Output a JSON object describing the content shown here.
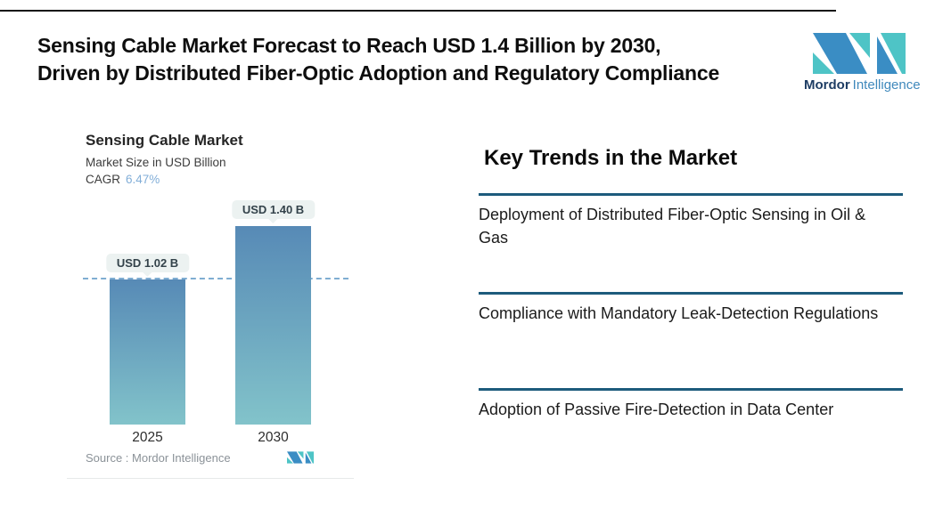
{
  "header": {
    "title_line1": "Sensing Cable Market Forecast to Reach USD 1.4 Billion by 2030,",
    "title_line2": "Driven by Distributed Fiber-Optic Adoption and Regulatory Compliance",
    "brand": {
      "word_primary": "Mordor",
      "word_secondary": "Intelligence"
    }
  },
  "chart_data": {
    "type": "bar",
    "title": "Sensing Cable Market",
    "subtitle": "Market Size in USD Billion",
    "cagr_label": "CAGR",
    "cagr_value": "6.47%",
    "categories": [
      "2025",
      "2030"
    ],
    "values": [
      1.02,
      1.4
    ],
    "value_labels": [
      "USD 1.02 B",
      "USD 1.40 B"
    ],
    "unit": "USD Billion",
    "ylim": [
      0,
      1.55
    ],
    "reference_line": 1.02,
    "grid": false,
    "legend": false,
    "source": "Source : Mordor Intelligence"
  },
  "trends": {
    "heading": "Key Trends in the Market",
    "items": [
      "Deployment of Distributed Fiber-Optic Sensing in Oil & Gas",
      "Compliance with Mandatory Leak-Detection Regulations",
      "Adoption of Passive Fire-Detection in Data Center"
    ]
  },
  "colors": {
    "bar_top": "#578ab6",
    "bar_bottom": "#82c3ca",
    "accent_blue": "#3a8dc4",
    "accent_teal": "#4ec4c6",
    "divider": "#1d5b7c",
    "cagr_value": "#82aed8",
    "dashed_line": "#7fadd2"
  }
}
